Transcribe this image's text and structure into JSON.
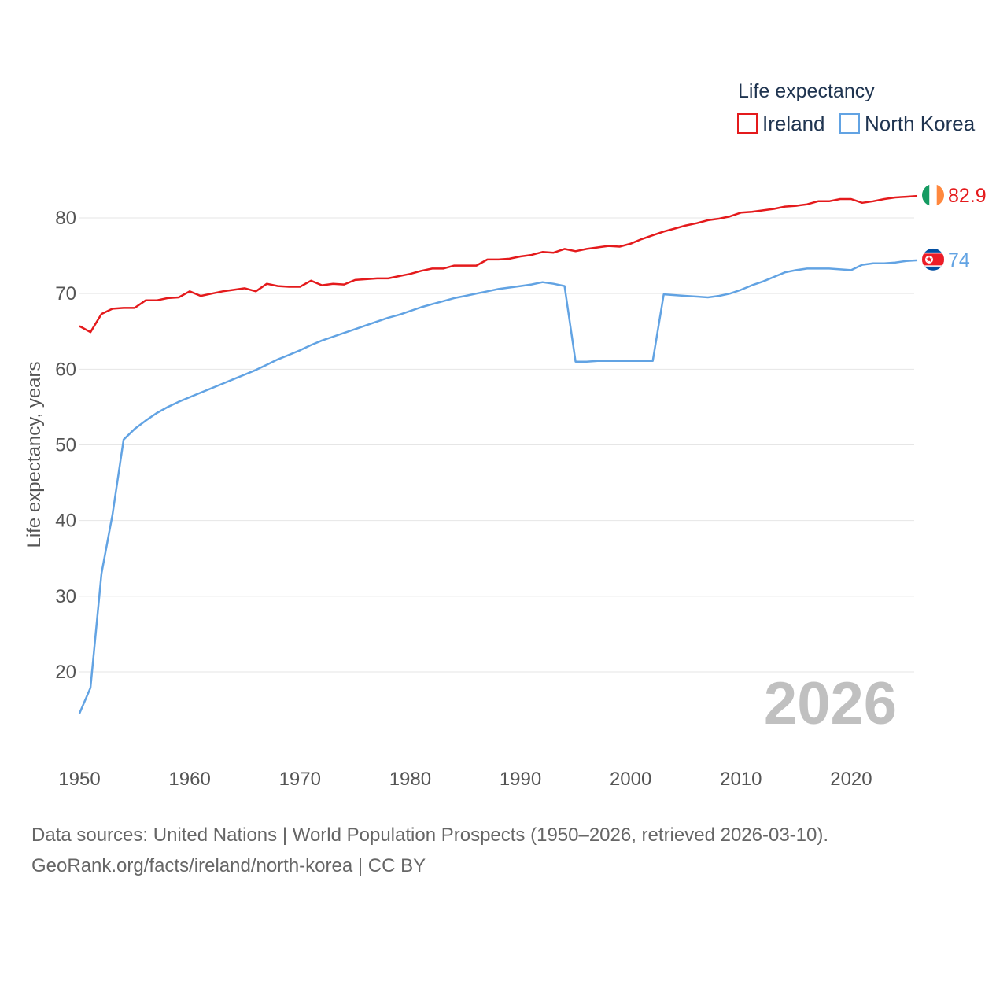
{
  "chart_data": {
    "type": "line",
    "ylabel": "Life expectancy, years",
    "xlabel": "",
    "xlim": [
      1950,
      2026
    ],
    "ylim": [
      12,
      88
    ],
    "x_ticks": [
      1950,
      1960,
      1970,
      1980,
      1990,
      2000,
      2010,
      2020
    ],
    "y_ticks": [
      20,
      30,
      40,
      50,
      60,
      70,
      80
    ],
    "year_label": "2026",
    "legend": {
      "title": "Life expectancy",
      "position": "top-right"
    },
    "series": [
      {
        "name": "Ireland",
        "color": "#e41a1c",
        "end_label": "82.9",
        "flag": "ireland-flag-icon",
        "x": [
          1950,
          1951,
          1952,
          1953,
          1954,
          1955,
          1956,
          1957,
          1958,
          1959,
          1960,
          1961,
          1962,
          1963,
          1964,
          1965,
          1966,
          1967,
          1968,
          1969,
          1970,
          1971,
          1972,
          1973,
          1974,
          1975,
          1976,
          1977,
          1978,
          1979,
          1980,
          1981,
          1982,
          1983,
          1984,
          1985,
          1986,
          1987,
          1988,
          1989,
          1990,
          1991,
          1992,
          1993,
          1994,
          1995,
          1996,
          1997,
          1998,
          1999,
          2000,
          2001,
          2002,
          2003,
          2004,
          2005,
          2006,
          2007,
          2008,
          2009,
          2010,
          2011,
          2012,
          2013,
          2014,
          2015,
          2016,
          2017,
          2018,
          2019,
          2020,
          2021,
          2022,
          2023,
          2024,
          2025,
          2026
        ],
        "values": [
          65.7,
          64.9,
          67.3,
          68.0,
          68.1,
          68.1,
          69.1,
          69.1,
          69.4,
          69.5,
          70.3,
          69.7,
          70.0,
          70.3,
          70.5,
          70.7,
          70.3,
          71.3,
          71.0,
          70.9,
          70.9,
          71.7,
          71.1,
          71.3,
          71.2,
          71.8,
          71.9,
          72.0,
          72.0,
          72.3,
          72.6,
          73.0,
          73.3,
          73.3,
          73.7,
          73.7,
          73.7,
          74.5,
          74.5,
          74.6,
          74.9,
          75.1,
          75.5,
          75.4,
          75.9,
          75.6,
          75.9,
          76.1,
          76.3,
          76.2,
          76.6,
          77.2,
          77.7,
          78.2,
          78.6,
          79.0,
          79.3,
          79.7,
          79.9,
          80.2,
          80.7,
          80.8,
          81.0,
          81.2,
          81.5,
          81.6,
          81.8,
          82.2,
          82.2,
          82.5,
          82.5,
          82.0,
          82.2,
          82.5,
          82.7,
          82.8,
          82.9
        ]
      },
      {
        "name": "North Korea",
        "color": "#62a3e3",
        "end_label": "74",
        "flag": "north-korea-flag-icon",
        "x": [
          1950,
          1951,
          1952,
          1953,
          1954,
          1955,
          1956,
          1957,
          1958,
          1959,
          1960,
          1961,
          1962,
          1963,
          1964,
          1965,
          1966,
          1967,
          1968,
          1969,
          1970,
          1971,
          1972,
          1973,
          1974,
          1975,
          1976,
          1977,
          1978,
          1979,
          1980,
          1981,
          1982,
          1983,
          1984,
          1985,
          1986,
          1987,
          1988,
          1989,
          1990,
          1991,
          1992,
          1993,
          1994,
          1995,
          1996,
          1997,
          1998,
          1999,
          2000,
          2001,
          2002,
          2003,
          2004,
          2005,
          2006,
          2007,
          2008,
          2009,
          2010,
          2011,
          2012,
          2013,
          2014,
          2015,
          2016,
          2017,
          2018,
          2019,
          2020,
          2021,
          2022,
          2023,
          2024,
          2025,
          2026
        ],
        "values": [
          14.5,
          17.9,
          33.0,
          40.8,
          50.7,
          52.1,
          53.2,
          54.2,
          55.0,
          55.7,
          56.3,
          56.9,
          57.5,
          58.1,
          58.7,
          59.3,
          59.9,
          60.6,
          61.3,
          61.9,
          62.5,
          63.2,
          63.8,
          64.3,
          64.8,
          65.3,
          65.8,
          66.3,
          66.8,
          67.2,
          67.7,
          68.2,
          68.6,
          69.0,
          69.4,
          69.7,
          70.0,
          70.3,
          70.6,
          70.8,
          71.0,
          71.2,
          71.5,
          71.3,
          71.0,
          61.0,
          61.0,
          61.1,
          61.1,
          61.1,
          61.1,
          61.1,
          61.1,
          69.9,
          69.8,
          69.7,
          69.6,
          69.5,
          69.7,
          70.0,
          70.5,
          71.1,
          71.6,
          72.2,
          72.8,
          73.1,
          73.3,
          73.3,
          73.3,
          73.2,
          73.1,
          73.8,
          74.0,
          74.0,
          74.1,
          74.3,
          74.4
        ]
      }
    ]
  },
  "footer": {
    "line1": "Data sources: United Nations | World Population Prospects (1950–2026, retrieved 2026-03-10).",
    "line2": "GeoRank.org/facts/ireland/north-korea | CC BY"
  }
}
